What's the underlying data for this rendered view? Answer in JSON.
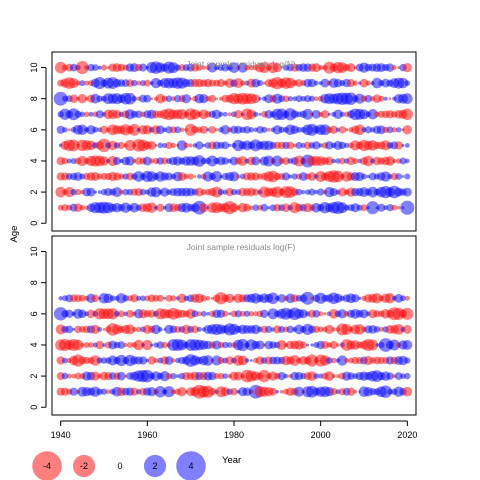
{
  "chart_data": [
    {
      "type": "scatter",
      "title": "Joint sample residuals log(N)",
      "ylabel": "Age",
      "xlim": [
        1938,
        2022
      ],
      "ylim": [
        -0.5,
        11
      ],
      "xticks": [
        1940,
        1960,
        1980,
        2000,
        2020
      ],
      "yticks": [
        0,
        2,
        4,
        6,
        8,
        10
      ],
      "ages": [
        1,
        2,
        3,
        4,
        5,
        6,
        7,
        8,
        9,
        10
      ],
      "years": [
        1940,
        2020
      ],
      "encoding": "bubble area ~ |residual|, red = negative, blue = positive",
      "sample_residuals": [
        {
          "year": 1940,
          "age": 8,
          "value": 3.5
        },
        {
          "year": 1945,
          "age": 10,
          "value": -3.0
        },
        {
          "year": 1950,
          "age": 5,
          "value": -3.2
        },
        {
          "year": 1972,
          "age": 1,
          "value": 3.4
        },
        {
          "year": 1997,
          "age": 4,
          "value": 3.0
        },
        {
          "year": 2012,
          "age": 1,
          "value": 3.0
        },
        {
          "year": 2020,
          "age": 1,
          "value": 3.6
        }
      ]
    },
    {
      "type": "scatter",
      "title": "Joint sample residuals log(F)",
      "xlabel": "Year",
      "ylabel": "Age",
      "xlim": [
        1938,
        2022
      ],
      "ylim": [
        -0.5,
        11
      ],
      "xticks": [
        1940,
        1960,
        1980,
        2000,
        2020
      ],
      "yticks": [
        0,
        2,
        4,
        6,
        8,
        10
      ],
      "ages": [
        1,
        2,
        3,
        4,
        5,
        6,
        7
      ],
      "years": [
        1940,
        2020
      ],
      "encoding": "bubble area ~ |residual|, red = negative, blue = positive",
      "sample_residuals": [
        {
          "year": 1940,
          "age": 6,
          "value": 3.2
        },
        {
          "year": 1972,
          "age": 1,
          "value": -3.5
        },
        {
          "year": 1985,
          "age": 1,
          "value": 3.4
        },
        {
          "year": 1997,
          "age": 7,
          "value": 3.0
        },
        {
          "year": 2015,
          "age": 4,
          "value": 3.4
        }
      ]
    }
  ],
  "legend": {
    "placement": "bottom-left",
    "values": [
      -4,
      -2,
      0,
      2,
      4
    ],
    "labels": [
      "-4",
      "-2",
      "0",
      "2",
      "4"
    ],
    "title": "Year"
  },
  "colors": {
    "negative": "#ff0000",
    "positive": "#0000ff",
    "title": "#8a8a8a"
  }
}
